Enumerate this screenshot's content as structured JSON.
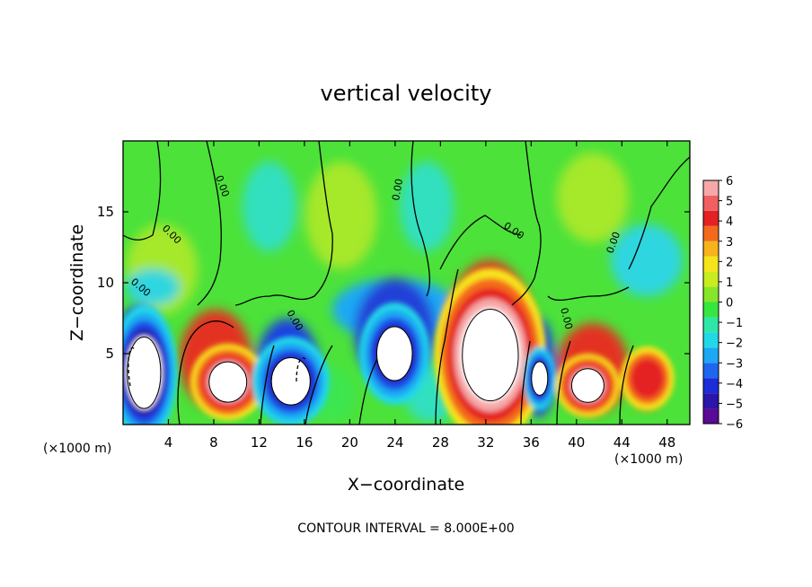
{
  "chart_data": {
    "type": "heatmap",
    "title": "vertical velocity",
    "xlabel": "X−coordinate",
    "ylabel": "Z−coordinate",
    "x_unit_label": "(×1000 m)",
    "x_unit_label_right": "(×1000 m)",
    "footer": "CONTOUR INTERVAL = 8.000E+00",
    "xlim": [
      0,
      50
    ],
    "ylim": [
      0,
      20
    ],
    "xticks": [
      "4",
      "8",
      "12",
      "16",
      "20",
      "24",
      "28",
      "32",
      "36",
      "40",
      "44",
      "48"
    ],
    "yticks": [
      "5",
      "10",
      "15"
    ],
    "contour_label": "0.00",
    "colorbar": {
      "range": [
        -6,
        6
      ],
      "labels": [
        "6",
        "5",
        "4",
        "3",
        "2",
        "1",
        "0",
        "−1",
        "−2",
        "−3",
        "−4",
        "−5",
        "−6"
      ],
      "colors": [
        "#5a0a96",
        "#2a16a8",
        "#1c2cd8",
        "#1e66ee",
        "#1ca8f4",
        "#22d8e6",
        "#2ee6a6",
        "#38e640",
        "#86e62a",
        "#c8ec20",
        "#f6e41a",
        "#f6b41a",
        "#f46a1c",
        "#e42222",
        "#f06060",
        "#f6a8a8"
      ]
    },
    "cells": [
      {
        "x": [
          0.3,
          3.4
        ],
        "z": [
          1.0,
          6.3
        ],
        "w": -9
      },
      {
        "x": [
          7.5,
          11.0
        ],
        "z": [
          1.5,
          4.5
        ],
        "w": 7
      },
      {
        "x": [
          13.0,
          16.6
        ],
        "z": [
          1.3,
          4.8
        ],
        "w": -8
      },
      {
        "x": [
          22.3,
          25.6
        ],
        "z": [
          3.0,
          7.0
        ],
        "w": -8
      },
      {
        "x": [
          29.8,
          35.0
        ],
        "z": [
          1.5,
          8.3
        ],
        "w": 9
      },
      {
        "x": [
          36.0,
          37.5
        ],
        "z": [
          2.0,
          4.5
        ],
        "w": -7
      },
      {
        "x": [
          39.5,
          42.5
        ],
        "z": [
          1.5,
          4.0
        ],
        "w": 7
      },
      {
        "x": [
          45.0,
          47.5
        ],
        "z": [
          2.0,
          4.5
        ],
        "w": 5
      }
    ]
  }
}
